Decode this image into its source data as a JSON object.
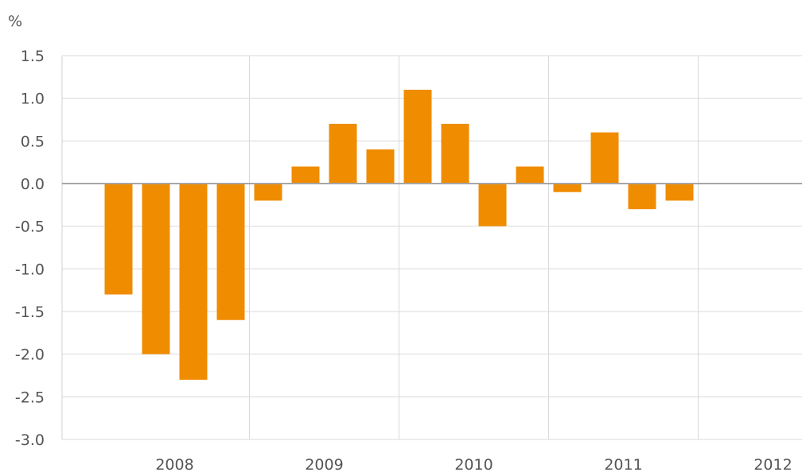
{
  "chart_data": {
    "type": "bar",
    "unit_label": "%",
    "x_tick_labels": [
      "2008",
      "2009",
      "2010",
      "2011",
      "2012"
    ],
    "y_ticks": [
      1.5,
      1.0,
      0.5,
      0.0,
      -0.5,
      -1.0,
      -1.5,
      -2.0,
      -2.5,
      -3.0
    ],
    "y_tick_labels": [
      "1.5",
      "1.0",
      "0.5",
      "0.0",
      "-0.5",
      "-1.0",
      "-1.5",
      "-2.0",
      "-2.5",
      "-3.0"
    ],
    "ylim": [
      -3.0,
      1.5
    ],
    "grid": true,
    "bar_color": "#f08c00",
    "values": [
      -1.3,
      -2.0,
      -2.3,
      -1.6,
      -0.2,
      0.2,
      0.7,
      0.4,
      1.1,
      0.7,
      -0.5,
      0.2,
      -0.1,
      0.6,
      -0.3,
      -0.2
    ],
    "quarters_per_year": 4
  }
}
